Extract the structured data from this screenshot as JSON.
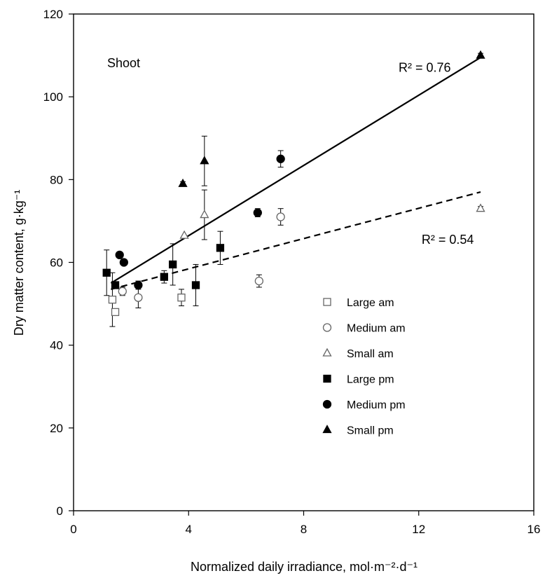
{
  "chart_data": {
    "type": "scatter",
    "panel_label": "Shoot",
    "xlabel": "Normalized daily  irradiance, mol·m⁻²·d⁻¹",
    "ylabel": "Dry matter content, g·kg⁻¹",
    "xlim": [
      0,
      16
    ],
    "ylim": [
      0,
      120
    ],
    "xticks": [
      0,
      4,
      8,
      12,
      16
    ],
    "yticks": [
      0,
      20,
      40,
      60,
      80,
      100,
      120
    ],
    "grid": false,
    "legend_position": "inside-lower-right",
    "series": [
      {
        "name": "Large am",
        "marker": "square-open",
        "points": [
          {
            "x": 1.35,
            "y": 51,
            "err": 6.5
          },
          {
            "x": 1.45,
            "y": 48,
            "err": 0.8
          },
          {
            "x": 3.75,
            "y": 51.5,
            "err": 2
          }
        ]
      },
      {
        "name": "Medium am",
        "marker": "circle-open",
        "points": [
          {
            "x": 1.7,
            "y": 53,
            "err": 1
          },
          {
            "x": 2.25,
            "y": 51.5,
            "err": 2.5
          },
          {
            "x": 6.45,
            "y": 55.5,
            "err": 1.5
          },
          {
            "x": 7.2,
            "y": 71,
            "err": 2
          }
        ]
      },
      {
        "name": "Small am",
        "marker": "triangle-open",
        "points": [
          {
            "x": 3.85,
            "y": 66.5,
            "err": 0
          },
          {
            "x": 4.55,
            "y": 71.5,
            "err": 6
          },
          {
            "x": 14.15,
            "y": 73,
            "err": 0.5
          }
        ]
      },
      {
        "name": "Large pm",
        "marker": "square-filled",
        "points": [
          {
            "x": 1.15,
            "y": 57.5,
            "err": 5.5
          },
          {
            "x": 1.45,
            "y": 54.5,
            "err": 0
          },
          {
            "x": 3.15,
            "y": 56.5,
            "err": 1.5
          },
          {
            "x": 3.45,
            "y": 59.5,
            "err": 5
          },
          {
            "x": 4.25,
            "y": 54.5,
            "err": 5
          },
          {
            "x": 5.1,
            "y": 63.5,
            "err": 4
          }
        ]
      },
      {
        "name": "Medium pm",
        "marker": "circle-filled",
        "points": [
          {
            "x": 1.6,
            "y": 61.8,
            "err": 0
          },
          {
            "x": 1.75,
            "y": 60,
            "err": 0
          },
          {
            "x": 2.25,
            "y": 54.5,
            "err": 1
          },
          {
            "x": 6.4,
            "y": 72,
            "err": 1
          },
          {
            "x": 7.2,
            "y": 85,
            "err": 2
          }
        ]
      },
      {
        "name": "Small pm",
        "marker": "triangle-filled",
        "points": [
          {
            "x": 3.8,
            "y": 79,
            "err": 0.5
          },
          {
            "x": 4.55,
            "y": 84.5,
            "err": 6
          },
          {
            "x": 14.15,
            "y": 110,
            "err": 0.5
          }
        ]
      }
    ],
    "trendlines": [
      {
        "style": "solid",
        "x": [
          1.3,
          14.15
        ],
        "y": [
          55,
          109.5
        ],
        "label": "R² = 0.76",
        "label_at": {
          "x": 11.3,
          "y": 106
        }
      },
      {
        "style": "dashed",
        "x": [
          1.3,
          14.15
        ],
        "y": [
          53.5,
          77
        ],
        "label": "R² = 0.54",
        "label_at": {
          "x": 12.1,
          "y": 64.5
        }
      }
    ]
  }
}
